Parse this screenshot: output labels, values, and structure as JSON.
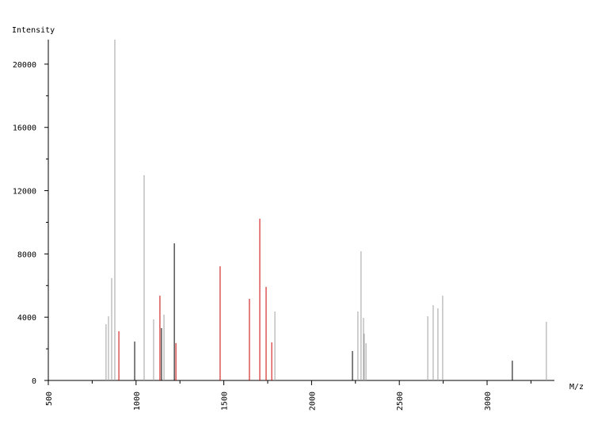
{
  "chart_data": {
    "type": "stem",
    "ylabel": "Intensity",
    "xlabel": "M/z",
    "xlim": [
      500,
      3380
    ],
    "xticks": [
      500,
      1000,
      1500,
      2000,
      2500,
      3000
    ],
    "xminorticks": [
      750,
      1250,
      1750,
      2250,
      2750,
      3250
    ],
    "ylim": [
      0,
      21550
    ],
    "yticks": [
      0,
      4000,
      8000,
      12000,
      16000,
      20000
    ],
    "yminorticks": [
      2000,
      6000,
      10000,
      14000,
      18000
    ],
    "series": [
      {
        "color": "#a0a0a0",
        "x": [
          829,
          843,
          861,
          879,
          1046,
          1100,
          1159,
          1791,
          2264,
          2282,
          2296,
          2300,
          2310,
          2662,
          2693,
          2720,
          2747,
          3338
        ],
        "values": [
          3560,
          4060,
          6470,
          21550,
          12980,
          3860,
          4160,
          4360,
          4360,
          8170,
          3960,
          2960,
          2360,
          4060,
          4760,
          4560,
          5360,
          3710
        ]
      },
      {
        "color": "#cc0000",
        "x": [
          902,
          1136,
          1227,
          1479,
          1646,
          1705,
          1741,
          1773
        ],
        "values": [
          3110,
          5360,
          2360,
          7220,
          5160,
          10230,
          5920,
          2410
        ]
      },
      {
        "color": "#000000",
        "x": [
          992,
          1145,
          1218,
          2233,
          3144
        ],
        "values": [
          2460,
          3310,
          8670,
          1860,
          1250
        ]
      }
    ]
  }
}
